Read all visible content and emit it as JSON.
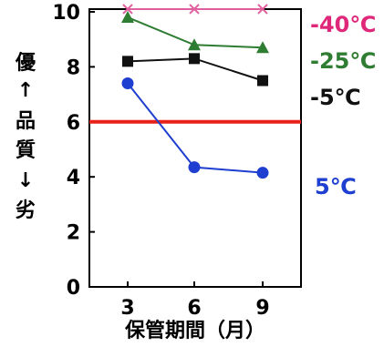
{
  "chart_data": {
    "type": "line",
    "x": [
      3,
      6,
      9
    ],
    "xlabel": "保管期間（月）",
    "ylabel_chars": [
      "優",
      "↑",
      "品",
      "質",
      "↓",
      "劣"
    ],
    "ylim": [
      0,
      10
    ],
    "yticks": [
      0,
      2,
      4,
      6,
      8,
      10
    ],
    "grid": false,
    "threshold": {
      "value": 6,
      "color": "#e8221b"
    },
    "series": [
      {
        "name": "-40℃",
        "values": [
          10.1,
          10.1,
          10.1
        ],
        "color": "#e0609f",
        "marker": "x",
        "label_color": "#e0287a"
      },
      {
        "name": "-25℃",
        "values": [
          9.8,
          8.8,
          8.7
        ],
        "color": "#2e7d32",
        "marker": "triangle",
        "label_color": "#2e7d32"
      },
      {
        "name": "-5℃",
        "values": [
          8.2,
          8.3,
          7.5
        ],
        "color": "#111111",
        "marker": "square",
        "label_color": "#111111"
      },
      {
        "name": "5℃",
        "values": [
          7.4,
          4.35,
          4.15
        ],
        "color": "#1f3fd0",
        "marker": "circle",
        "label_color": "#1f3fd0"
      }
    ]
  }
}
